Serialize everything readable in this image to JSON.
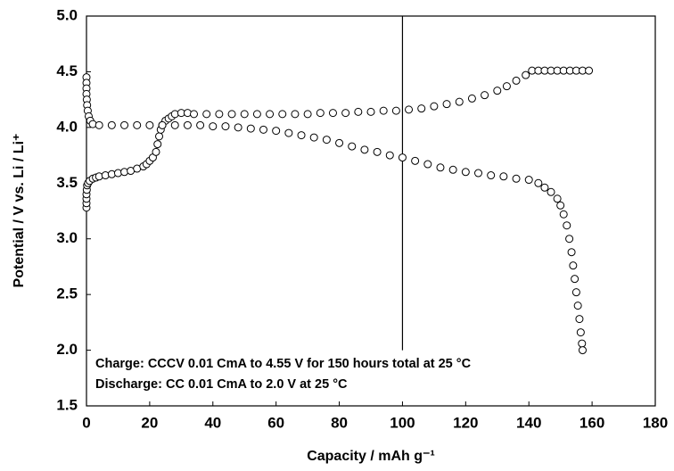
{
  "chart_data": {
    "type": "scatter",
    "xlabel": "Capacity / mAh g⁻¹",
    "ylabel": "Potential / V vs. Li / Li⁺",
    "annotations": [
      "Charge: CCCV 0.01 CmA to 4.55 V for 150 hours total at 25 °C",
      "Discharge: CC 0.01 CmA to 2.0 V at 25 °C"
    ],
    "xlim": [
      0,
      180
    ],
    "xticks": [
      0,
      20,
      40,
      60,
      80,
      100,
      120,
      140,
      160,
      180
    ],
    "ylim": [
      1.5,
      5
    ],
    "yticks": [
      1.5,
      {
        "value": 2,
        "label": "2.0"
      },
      2.5,
      {
        "value": 3,
        "label": "3.0"
      },
      3.5,
      {
        "value": 4,
        "label": "4.0"
      },
      4.5,
      {
        "value": 5,
        "label": "5.0"
      }
    ],
    "reference_line": {
      "x": 100,
      "y_end": 2
    },
    "marker": "open-circle",
    "series": [
      {
        "color": "#000000",
        "x": [
          0,
          0,
          0,
          0,
          0.1,
          0.2,
          0.5,
          1,
          2,
          3,
          4,
          6,
          8,
          10,
          12,
          14,
          16,
          18,
          19,
          20,
          21,
          22,
          22.5,
          23,
          23.5,
          24,
          25,
          26,
          27,
          28,
          30,
          32,
          34,
          38,
          42,
          46,
          50,
          54,
          58,
          62,
          66,
          70,
          74,
          78,
          82,
          86,
          90,
          94,
          98,
          102,
          106,
          110,
          114,
          118,
          122,
          126,
          130,
          133,
          136,
          139,
          141,
          143,
          145,
          147,
          149,
          151,
          153,
          155,
          157,
          159
        ],
        "values": [
          3.28,
          3.32,
          3.36,
          3.4,
          3.44,
          3.48,
          3.5,
          3.52,
          3.54,
          3.55,
          3.56,
          3.57,
          3.58,
          3.59,
          3.6,
          3.61,
          3.63,
          3.65,
          3.67,
          3.7,
          3.73,
          3.78,
          3.85,
          3.92,
          3.98,
          4.02,
          4.06,
          4.08,
          4.1,
          4.12,
          4.13,
          4.13,
          4.12,
          4.12,
          4.12,
          4.12,
          4.12,
          4.12,
          4.12,
          4.12,
          4.12,
          4.12,
          4.13,
          4.13,
          4.13,
          4.14,
          4.14,
          4.15,
          4.15,
          4.16,
          4.17,
          4.19,
          4.21,
          4.23,
          4.26,
          4.29,
          4.33,
          4.37,
          4.42,
          4.47,
          4.51,
          4.51,
          4.51,
          4.51,
          4.51,
          4.51,
          4.51,
          4.51,
          4.51,
          4.51
        ]
      },
      {
        "color": "#000000",
        "x": [
          0,
          0,
          0,
          0,
          0.1,
          0.2,
          0.4,
          0.7,
          1.2,
          2,
          4,
          8,
          12,
          16,
          20,
          24,
          28,
          32,
          36,
          40,
          44,
          48,
          52,
          56,
          60,
          64,
          68,
          72,
          76,
          80,
          84,
          88,
          92,
          96,
          100,
          104,
          108,
          112,
          116,
          120,
          124,
          128,
          132,
          136,
          140,
          143,
          145,
          147,
          149,
          150,
          151,
          152,
          152.8,
          153.5,
          154,
          154.5,
          155,
          155.5,
          156,
          156.4,
          156.8,
          157
        ],
        "values": [
          4.45,
          4.4,
          4.35,
          4.3,
          4.25,
          4.2,
          4.15,
          4.1,
          4.06,
          4.03,
          4.02,
          4.02,
          4.02,
          4.02,
          4.02,
          4.02,
          4.02,
          4.02,
          4.02,
          4.01,
          4.01,
          4.0,
          3.99,
          3.98,
          3.97,
          3.95,
          3.93,
          3.91,
          3.89,
          3.86,
          3.83,
          3.8,
          3.78,
          3.75,
          3.73,
          3.7,
          3.67,
          3.64,
          3.62,
          3.6,
          3.59,
          3.57,
          3.56,
          3.54,
          3.53,
          3.5,
          3.46,
          3.42,
          3.36,
          3.3,
          3.22,
          3.12,
          3.0,
          2.88,
          2.76,
          2.64,
          2.52,
          2.4,
          2.28,
          2.16,
          2.06,
          2.0
        ]
      }
    ]
  }
}
